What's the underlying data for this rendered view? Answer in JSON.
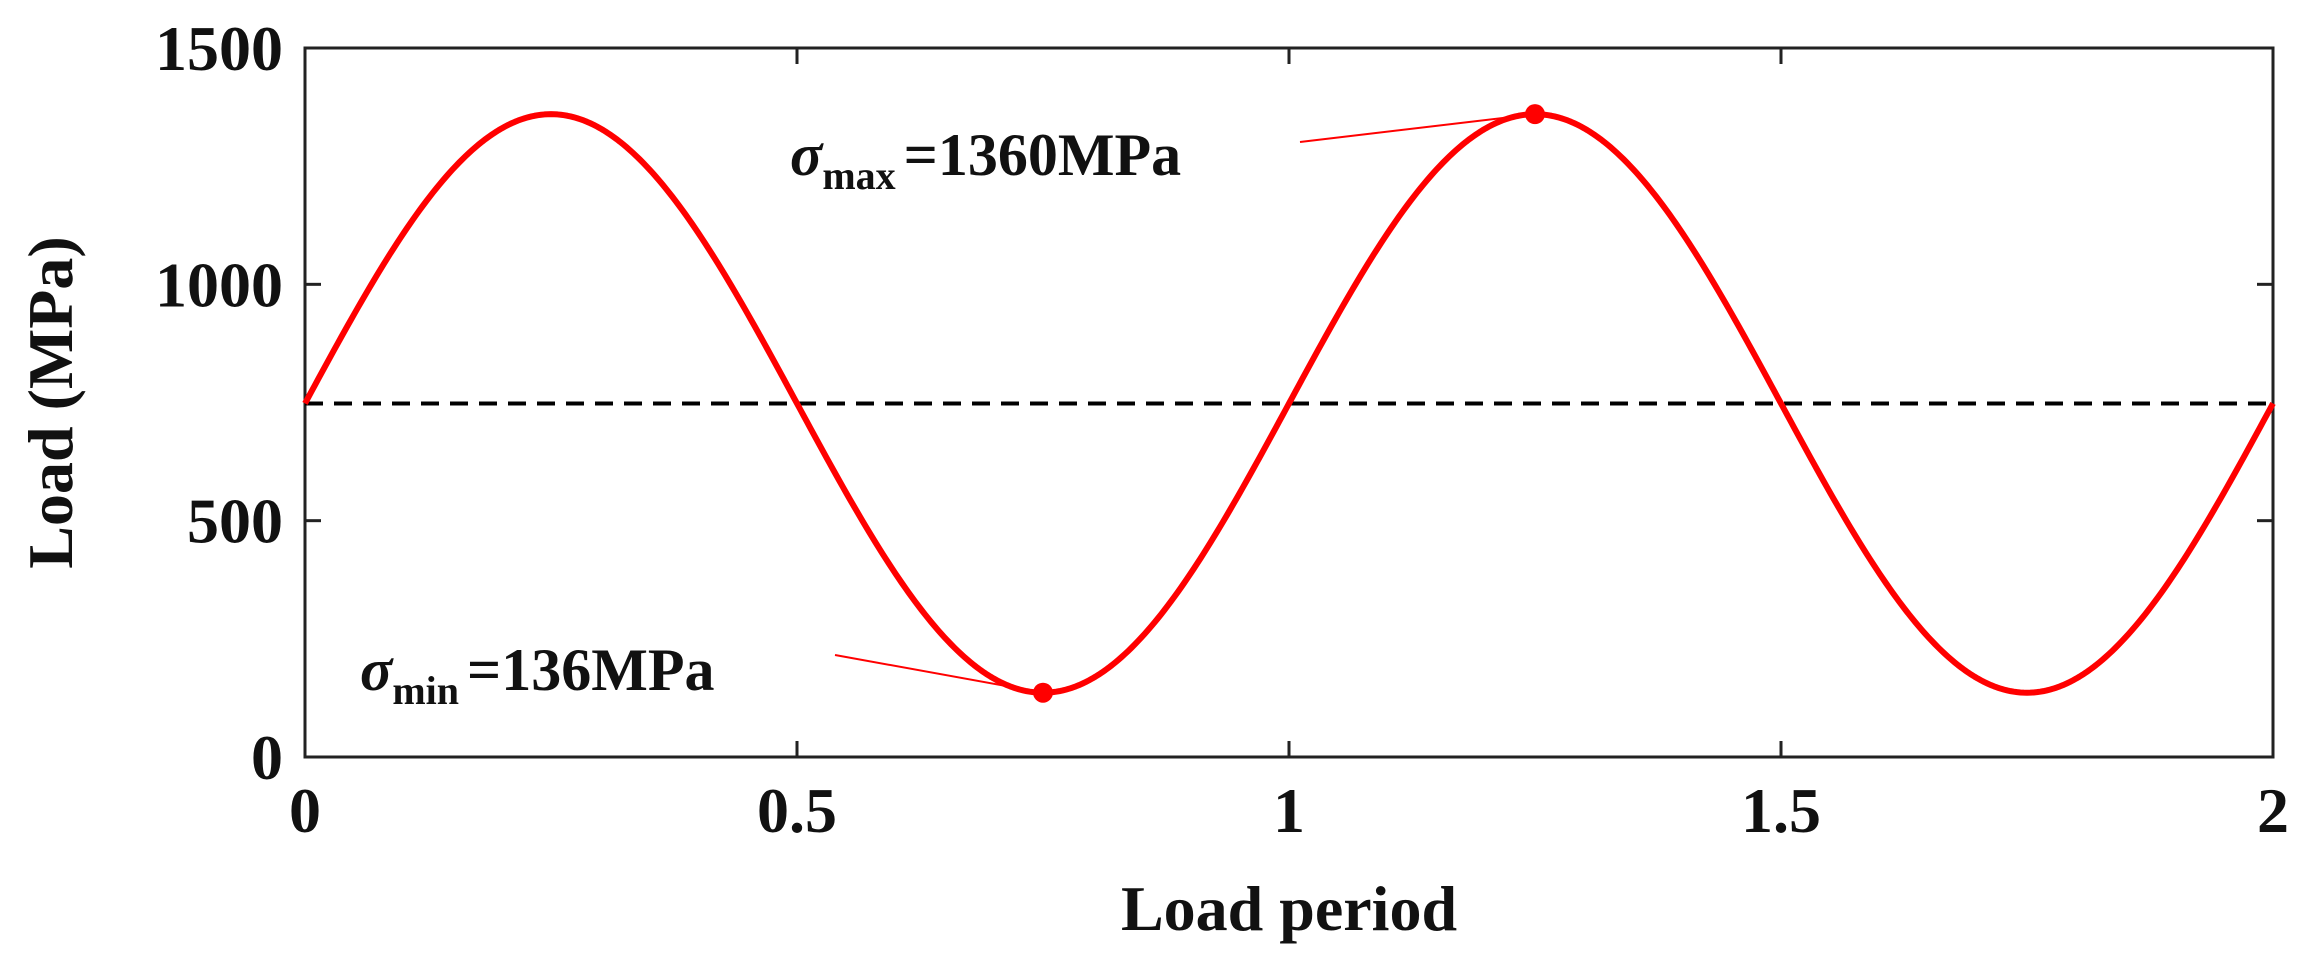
{
  "chart_data": {
    "type": "line",
    "xlabel": "Load period",
    "ylabel": "Load (MPa)",
    "xlim": [
      0,
      2
    ],
    "ylim": [
      0,
      1500
    ],
    "xticks": [
      0,
      0.5,
      1,
      1.5,
      2
    ],
    "xtick_labels": [
      "0",
      "0.5",
      "1",
      "1.5",
      "2"
    ],
    "yticks": [
      0,
      500,
      1000,
      1500
    ],
    "ytick_labels": [
      "0",
      "500",
      "1000",
      "1500"
    ],
    "grid": false,
    "colors": {
      "series": "#ff0000",
      "reference": "#000000",
      "axes": "#222222"
    },
    "series": [
      {
        "function": "sine",
        "mean": 748,
        "amplitude": 612,
        "period": 1,
        "x": [
          0,
          0.125,
          0.25,
          0.375,
          0.5,
          0.625,
          0.75,
          0.875,
          1,
          1.125,
          1.25,
          1.375,
          1.5,
          1.625,
          1.75,
          1.875,
          2
        ],
        "y": [
          748,
          1181,
          1360,
          1181,
          748,
          315,
          136,
          315,
          748,
          1181,
          1360,
          1181,
          748,
          315,
          136,
          315,
          748
        ]
      }
    ],
    "reference_line": {
      "y": 748,
      "style": "dashed"
    },
    "annotations": [
      {
        "symbol": "σ",
        "subscript": "max",
        "value_text": "=1360MPa",
        "x": 1.25,
        "y": 1360
      },
      {
        "symbol": "σ",
        "subscript": "min",
        "value_text": "=136MPa",
        "x": 0.75,
        "y": 136
      }
    ]
  }
}
